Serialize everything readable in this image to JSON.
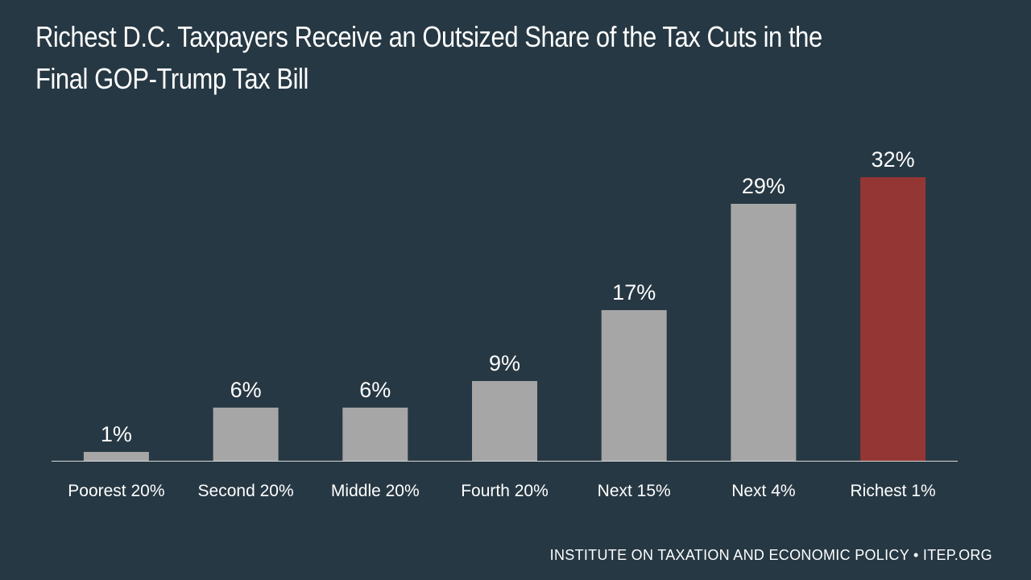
{
  "title": "Richest D.C. Taxpayers Receive an Outsized Share of the Tax Cuts in the Final GOP-Trump Tax Bill",
  "footer": "INSTITUTE ON TAXATION AND ECONOMIC POLICY • ITEP.ORG",
  "colors": {
    "background": "#263843",
    "bar": "#a6a6a6",
    "highlight": "#943634",
    "axis": "#d9d9d9",
    "text": "#ffffff"
  },
  "chart_data": {
    "type": "bar",
    "title": "Richest D.C. Taxpayers Receive an Outsized Share of the Tax Cuts in the Final GOP-Trump Tax Bill",
    "xlabel": "",
    "ylabel": "",
    "categories": [
      "Poorest 20%",
      "Second 20%",
      "Middle 20%",
      "Fourth 20%",
      "Next 15%",
      "Next 4%",
      "Richest 1%"
    ],
    "values": [
      1,
      6,
      6,
      9,
      17,
      29,
      32
    ],
    "value_labels": [
      "1%",
      "6%",
      "6%",
      "9%",
      "17%",
      "29%",
      "32%"
    ],
    "highlight_index": 6,
    "ylim": [
      0,
      32
    ],
    "grid": false,
    "legend": "none"
  }
}
